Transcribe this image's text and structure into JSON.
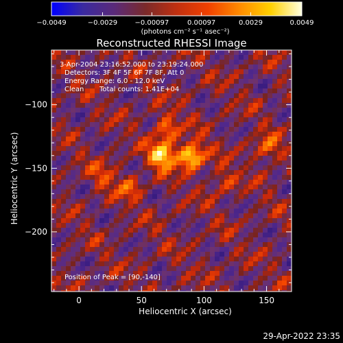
{
  "chart_data": {
    "type": "heatmap",
    "title": "Reconstructed RHESSI Image",
    "xlabel": "Heliocentric X (arcsec)",
    "ylabel": "Heliocentric Y (arcsec)",
    "xlim": [
      -22,
      170
    ],
    "ylim": [
      -247,
      -57
    ],
    "x_ticks": [
      0,
      50,
      100,
      150
    ],
    "x_tick_labels": [
      "0",
      "50",
      "100",
      "150"
    ],
    "y_ticks": [
      -100,
      -150,
      -200
    ],
    "y_tick_labels": [
      "−100",
      "−150",
      "−200"
    ],
    "colorbar": {
      "range": [
        -0.0049,
        0.0049
      ],
      "ticks": [
        -0.0049,
        -0.0029,
        -0.00097,
        0.00097,
        0.0029,
        0.0049
      ],
      "tick_labels": [
        "−0.0049",
        "−0.0029",
        "−0.00097",
        "0.00097",
        "0.0029",
        "0.0049"
      ],
      "unit_label": "(photons cm⁻² s⁻¹ asec⁻²)",
      "colors": [
        "#0000ff",
        "#3a2aa0",
        "#5a2a7a",
        "#7a2a2a",
        "#c03010",
        "#f04000",
        "#ff8a00",
        "#ffd000",
        "#ffffe0"
      ]
    },
    "annotations": [
      " 3-Apr-2004 23:16:52.000 to 23:19:24.000",
      "Detectors: 3F 4F 5F 6F 7F 8F, Att 0",
      "Energy Range: 6.0 - 12.0 keV",
      "Clean",
      "Total counts: 1.41E+04"
    ],
    "peak_label": "Position of Peak = [90,-140]",
    "peak": [
      90,
      -140
    ],
    "sources": [
      {
        "x": 67,
        "y": -140,
        "intensity": 1.0
      },
      {
        "x": 90,
        "y": -140,
        "intensity": 1.0
      },
      {
        "x": 70,
        "y": -118,
        "intensity": 0.55
      },
      {
        "x": 150,
        "y": -135,
        "intensity": 0.5
      },
      {
        "x": 20,
        "y": -155,
        "intensity": 0.35
      },
      {
        "x": 40,
        "y": -165,
        "intensity": 0.4
      },
      {
        "x": 115,
        "y": -160,
        "intensity": 0.35
      }
    ]
  },
  "footer": {
    "timestamp": "29-Apr-2022 23:35"
  }
}
